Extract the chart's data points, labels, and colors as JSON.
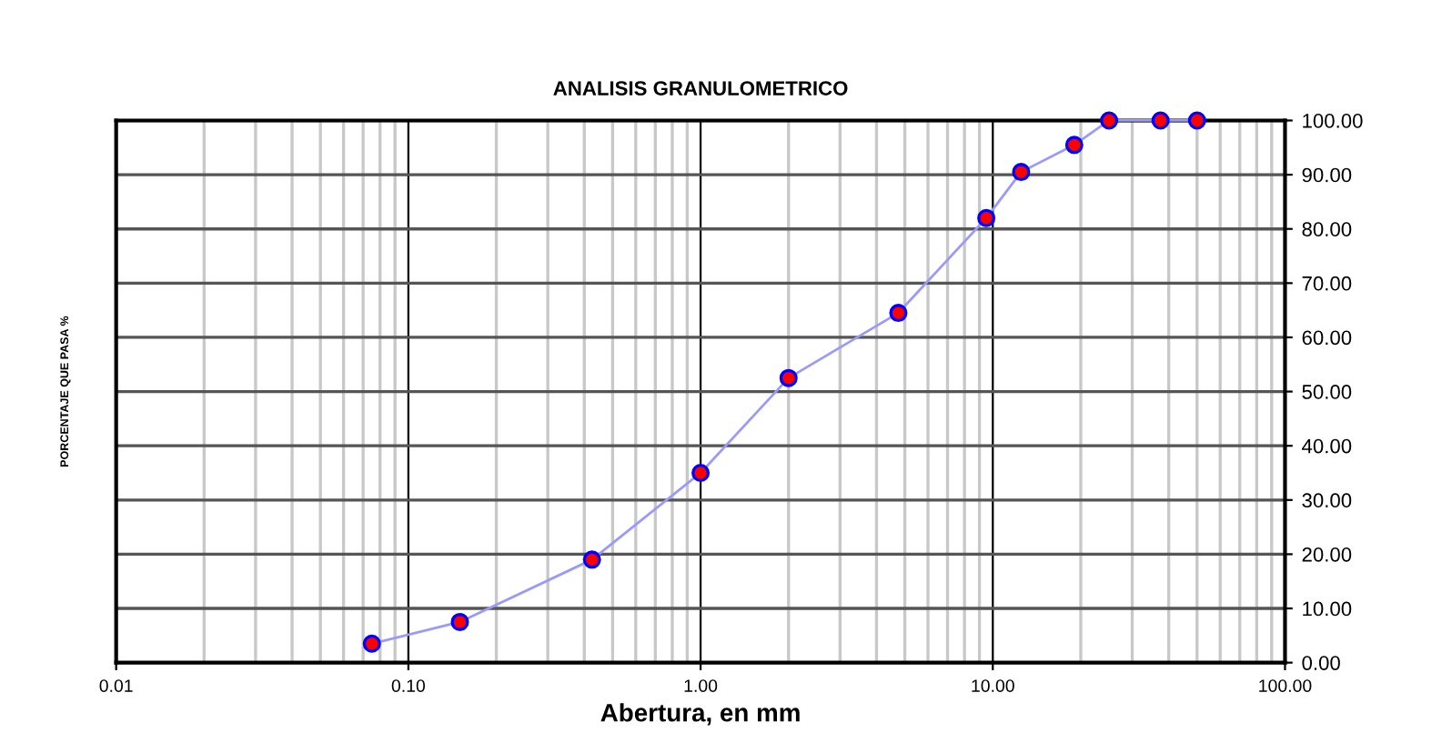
{
  "chart_data": {
    "type": "line",
    "title": "ANALISIS GRANULOMETRICO",
    "xlabel": "Abertura, en mm",
    "ylabel": "PORCENTAJE QUE PASA %",
    "x": [
      0.075,
      0.15,
      0.425,
      1.0,
      2.0,
      4.75,
      9.5,
      12.5,
      19.0,
      25.0,
      37.5,
      50.0
    ],
    "series": [
      {
        "color": "#9999ff",
        "values": [
          3.5,
          7.5,
          19,
          35,
          52.5,
          64.5,
          82,
          90.5,
          95.5,
          100,
          100,
          100
        ]
      }
    ],
    "log": "x",
    "marker": "circle",
    "line_style": "solid",
    "grid": true,
    "xlim": [
      0.01,
      100
    ],
    "xticks": [
      {
        "value": 0.01,
        "label": "0.01"
      },
      {
        "value": 0.1,
        "label": "0.10"
      },
      {
        "value": 1,
        "label": "1.00"
      },
      {
        "value": 10,
        "label": "10.00"
      },
      {
        "value": 100,
        "label": "100.00"
      }
    ],
    "ylim": [
      0,
      100
    ],
    "yticks": [
      {
        "value": 0,
        "label": "0.00"
      },
      {
        "value": 10,
        "label": "10.00"
      },
      {
        "value": 20,
        "label": "20.00"
      },
      {
        "value": 30,
        "label": "30.00"
      },
      {
        "value": 40,
        "label": "40.00"
      },
      {
        "value": 50,
        "label": "50.00"
      },
      {
        "value": 60,
        "label": "60.00"
      },
      {
        "value": 70,
        "label": "70.00"
      },
      {
        "value": 80,
        "label": "80.00"
      },
      {
        "value": 90,
        "label": "90.00"
      },
      {
        "value": 100,
        "label": "100.00"
      }
    ]
  }
}
